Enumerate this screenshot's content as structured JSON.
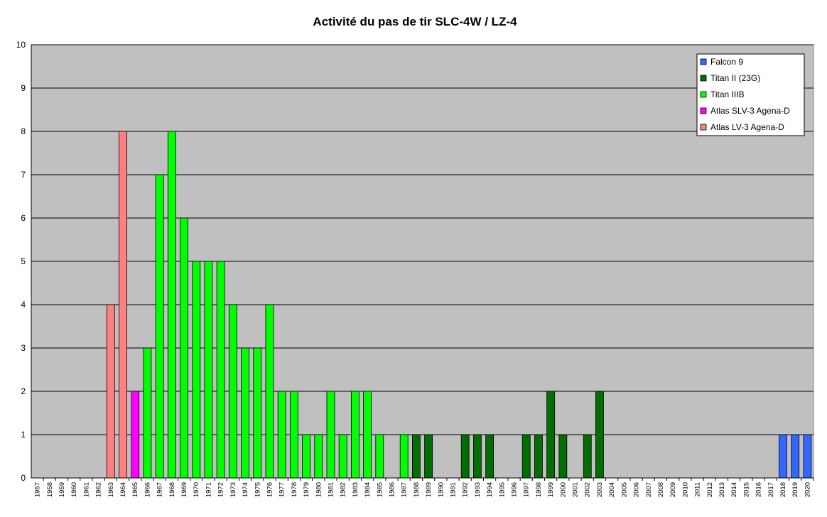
{
  "chart_data": {
    "type": "stacked-bar",
    "title": "Activité du pas de tir SLC-4W / LZ-4",
    "categories": [
      "1957",
      "1958",
      "1959",
      "1960",
      "1961",
      "1962",
      "1963",
      "1964",
      "1965",
      "1966",
      "1967",
      "1968",
      "1969",
      "1970",
      "1971",
      "1972",
      "1973",
      "1974",
      "1975",
      "1976",
      "1977",
      "1978",
      "1979",
      "1980",
      "1981",
      "1982",
      "1983",
      "1984",
      "1985",
      "1986",
      "1987",
      "1988",
      "1989",
      "1990",
      "1991",
      "1992",
      "1993",
      "1994",
      "1995",
      "1996",
      "1997",
      "1998",
      "1999",
      "2000",
      "2001",
      "2002",
      "2003",
      "2004",
      "2005",
      "2006",
      "2007",
      "2008",
      "2009",
      "2010",
      "2011",
      "2012",
      "2013",
      "2014",
      "2015",
      "2016",
      "2017",
      "2018",
      "2019",
      "2020"
    ],
    "series": [
      {
        "name": "Atlas LV-3 Agena-D",
        "color": "#ff8080",
        "values": [
          0,
          0,
          0,
          0,
          0,
          0,
          4,
          8,
          0,
          0,
          0,
          0,
          0,
          0,
          0,
          0,
          0,
          0,
          0,
          0,
          0,
          0,
          0,
          0,
          0,
          0,
          0,
          0,
          0,
          0,
          0,
          0,
          0,
          0,
          0,
          0,
          0,
          0,
          0,
          0,
          0,
          0,
          0,
          0,
          0,
          0,
          0,
          0,
          0,
          0,
          0,
          0,
          0,
          0,
          0,
          0,
          0,
          0,
          0,
          0,
          0,
          0,
          0,
          0
        ]
      },
      {
        "name": "Atlas SLV-3 Agena-D",
        "color": "#ff00ff",
        "values": [
          0,
          0,
          0,
          0,
          0,
          0,
          0,
          0,
          2,
          0,
          0,
          0,
          0,
          0,
          0,
          0,
          0,
          0,
          0,
          0,
          0,
          0,
          0,
          0,
          0,
          0,
          0,
          0,
          0,
          0,
          0,
          0,
          0,
          0,
          0,
          0,
          0,
          0,
          0,
          0,
          0,
          0,
          0,
          0,
          0,
          0,
          0,
          0,
          0,
          0,
          0,
          0,
          0,
          0,
          0,
          0,
          0,
          0,
          0,
          0,
          0,
          0,
          0,
          0
        ]
      },
      {
        "name": "Titan IIIB",
        "color": "#00ff00",
        "values": [
          0,
          0,
          0,
          0,
          0,
          0,
          0,
          0,
          0,
          3,
          7,
          8,
          6,
          5,
          5,
          5,
          4,
          3,
          3,
          4,
          2,
          2,
          1,
          1,
          2,
          1,
          2,
          2,
          1,
          0,
          1,
          0,
          0,
          0,
          0,
          0,
          0,
          0,
          0,
          0,
          0,
          0,
          0,
          0,
          0,
          0,
          0,
          0,
          0,
          0,
          0,
          0,
          0,
          0,
          0,
          0,
          0,
          0,
          0,
          0,
          0,
          0,
          0,
          0
        ]
      },
      {
        "name": "Titan II (23G)",
        "color": "#006e00",
        "values": [
          0,
          0,
          0,
          0,
          0,
          0,
          0,
          0,
          0,
          0,
          0,
          0,
          0,
          0,
          0,
          0,
          0,
          0,
          0,
          0,
          0,
          0,
          0,
          0,
          0,
          0,
          0,
          0,
          0,
          0,
          0,
          1,
          1,
          0,
          0,
          1,
          1,
          1,
          0,
          0,
          1,
          1,
          2,
          1,
          0,
          1,
          2,
          0,
          0,
          0,
          0,
          0,
          0,
          0,
          0,
          0,
          0,
          0,
          0,
          0,
          0,
          0,
          0,
          0
        ]
      },
      {
        "name": "Falcon 9",
        "color": "#3366ff",
        "values": [
          0,
          0,
          0,
          0,
          0,
          0,
          0,
          0,
          0,
          0,
          0,
          0,
          0,
          0,
          0,
          0,
          0,
          0,
          0,
          0,
          0,
          0,
          0,
          0,
          0,
          0,
          0,
          0,
          0,
          0,
          0,
          0,
          0,
          0,
          0,
          0,
          0,
          0,
          0,
          0,
          0,
          0,
          0,
          0,
          0,
          0,
          0,
          0,
          0,
          0,
          0,
          0,
          0,
          0,
          0,
          0,
          0,
          0,
          0,
          0,
          0,
          1,
          1,
          1
        ]
      }
    ],
    "ylim": [
      0,
      10
    ],
    "yticks": [
      0,
      1,
      2,
      3,
      4,
      5,
      6,
      7,
      8,
      9,
      10
    ],
    "grid": true,
    "legend": "top-right"
  }
}
